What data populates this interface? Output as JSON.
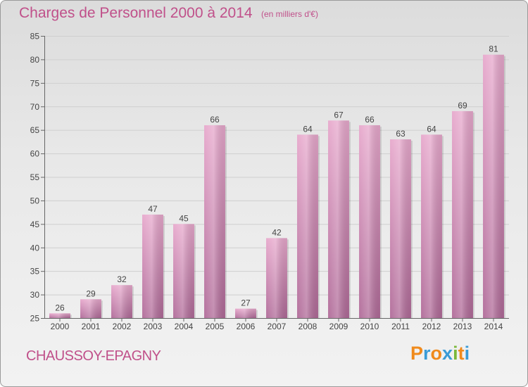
{
  "header": {
    "title": "Charges de Personnel 2000 à 2014",
    "subtitle": "(en milliers d'€)"
  },
  "footer": {
    "city": "CHAUSSOY-EPAGNY",
    "logo": "Proxiti"
  },
  "colors": {
    "accent": "#c0508a",
    "bar_top": "#e7a8cc",
    "bar_bottom": "#b06a98",
    "logo_letters": [
      "#f08a1c",
      "#3a9bd6",
      "#f08a1c",
      "#3a9bd6",
      "#7ab83a",
      "#f08a1c",
      "#3a9bd6"
    ]
  },
  "chart_data": {
    "type": "bar",
    "title": "Charges de Personnel 2000 à 2014",
    "subtitle": "(en milliers d'€)",
    "categories": [
      "2000",
      "2001",
      "2002",
      "2003",
      "2004",
      "2005",
      "2006",
      "2007",
      "2008",
      "2009",
      "2010",
      "2011",
      "2012",
      "2013",
      "2014"
    ],
    "values": [
      26,
      29,
      32,
      47,
      45,
      66,
      27,
      42,
      64,
      67,
      66,
      63,
      64,
      69,
      81
    ],
    "ylim": [
      25,
      85
    ],
    "yticks": [
      25,
      30,
      35,
      40,
      45,
      50,
      55,
      60,
      65,
      70,
      75,
      80,
      85
    ],
    "grid": true,
    "data_labels": true
  }
}
